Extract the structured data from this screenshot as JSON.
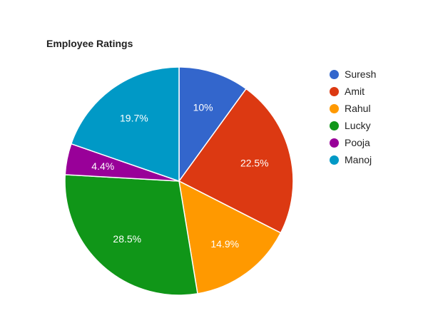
{
  "chart_data": {
    "type": "pie",
    "title": "Employee Ratings",
    "categories": [
      "Suresh",
      "Amit",
      "Rahul",
      "Lucky",
      "Pooja",
      "Manoj"
    ],
    "values": [
      10,
      22.5,
      14.9,
      28.5,
      4.4,
      19.7
    ],
    "slice_labels": [
      "10%",
      "22.5%",
      "14.9%",
      "28.5%",
      "4.4%",
      "19.7%"
    ],
    "colors": [
      "#3366cc",
      "#dc3912",
      "#ff9900",
      "#109618",
      "#990099",
      "#0099c6"
    ],
    "legend_position": "right"
  }
}
